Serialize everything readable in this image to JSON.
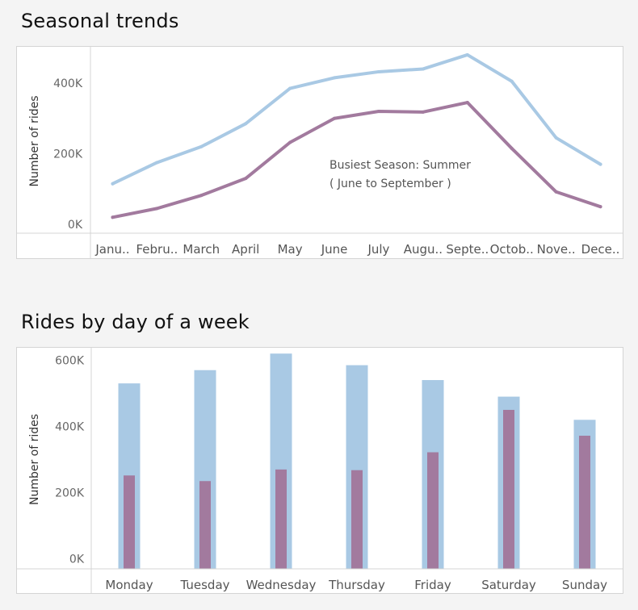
{
  "charts": {
    "seasonal": {
      "title": "Seasonal trends"
    },
    "weekday": {
      "title": "Rides by day of a week"
    }
  },
  "chart_data": [
    {
      "type": "line",
      "title": "Seasonal trends",
      "xlabel": "",
      "ylabel": "Number of rides",
      "categories": [
        "Janu..",
        "Febru..",
        "March",
        "April",
        "May",
        "June",
        "July",
        "Augu..",
        "Septe..",
        "Octob..",
        "Nove..",
        "Dece.."
      ],
      "yticks": [
        "0K",
        "200K",
        "400K"
      ],
      "ylim": [
        -25000,
        505000
      ],
      "series": [
        {
          "values": [
            115000,
            175000,
            220000,
            285000,
            385000,
            415000,
            432000,
            440000,
            480000,
            405000,
            245000,
            170000
          ],
          "color": "#a9c9e4"
        },
        {
          "values": [
            20000,
            45000,
            82000,
            130000,
            232000,
            300000,
            320000,
            318000,
            345000,
            215000,
            92000,
            50000
          ],
          "color": "#a27a9e"
        }
      ],
      "annotation": [
        "Busiest Season: Summer",
        "( June to September )"
      ],
      "grid": false
    },
    {
      "type": "bar",
      "title": "Rides by day of a week",
      "xlabel": "",
      "ylabel": "Number of rides",
      "categories": [
        "Monday",
        "Tuesday",
        "Wednesday",
        "Thursday",
        "Friday",
        "Saturday",
        "Sunday"
      ],
      "yticks": [
        "0K",
        "200K",
        "400K",
        "600K"
      ],
      "ylim": [
        -30000,
        640000
      ],
      "series": [
        {
          "values": [
            530000,
            570000,
            620000,
            585000,
            540000,
            490000,
            420000
          ],
          "color": "#a9c9e4"
        },
        {
          "values": [
            252000,
            235000,
            270000,
            268000,
            322000,
            450000,
            372000
          ],
          "color": "#a27a9e"
        }
      ],
      "grid": false
    }
  ]
}
